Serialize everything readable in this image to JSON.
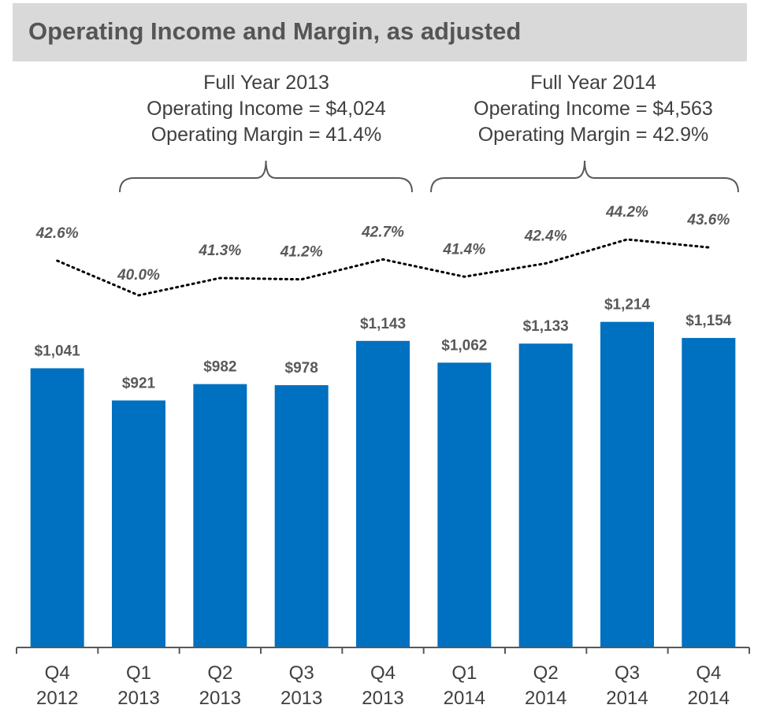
{
  "chart_data": {
    "type": "bar",
    "title": "Operating Income and Margin, as adjusted",
    "categories": [
      [
        "Q4",
        "2012"
      ],
      [
        "Q1",
        "2013"
      ],
      [
        "Q2",
        "2013"
      ],
      [
        "Q3",
        "2013"
      ],
      [
        "Q4",
        "2013"
      ],
      [
        "Q1",
        "2014"
      ],
      [
        "Q2",
        "2014"
      ],
      [
        "Q3",
        "2014"
      ],
      [
        "Q4",
        "2014"
      ]
    ],
    "series": [
      {
        "type": "bar",
        "values": [
          1041,
          921,
          982,
          978,
          1143,
          1062,
          1133,
          1214,
          1154
        ],
        "labels": [
          "$1,041",
          "$921",
          "$982",
          "$978",
          "$1,143",
          "$1,062",
          "$1,133",
          "$1,214",
          "$1,154"
        ],
        "color": "#0070c0"
      },
      {
        "type": "line",
        "style": "dotted",
        "values": [
          42.6,
          40.0,
          41.3,
          41.2,
          42.7,
          41.4,
          42.4,
          44.2,
          43.6
        ],
        "labels": [
          "42.6%",
          "40.0%",
          "41.3%",
          "41.2%",
          "42.7%",
          "41.4%",
          "42.4%",
          "44.2%",
          "43.6%"
        ],
        "color": "#000000"
      }
    ],
    "ylim": [
      0,
      1250
    ],
    "grid": false,
    "annotations": [
      {
        "lines": [
          "Full Year 2013",
          "Operating Income = $4,024",
          "Operating Margin = 41.4%"
        ],
        "span": [
          0,
          4
        ]
      },
      {
        "lines": [
          "Full Year 2014",
          "Operating Income = $4,563",
          "Operating Margin = 42.9%"
        ],
        "span": [
          5,
          8
        ]
      }
    ]
  }
}
